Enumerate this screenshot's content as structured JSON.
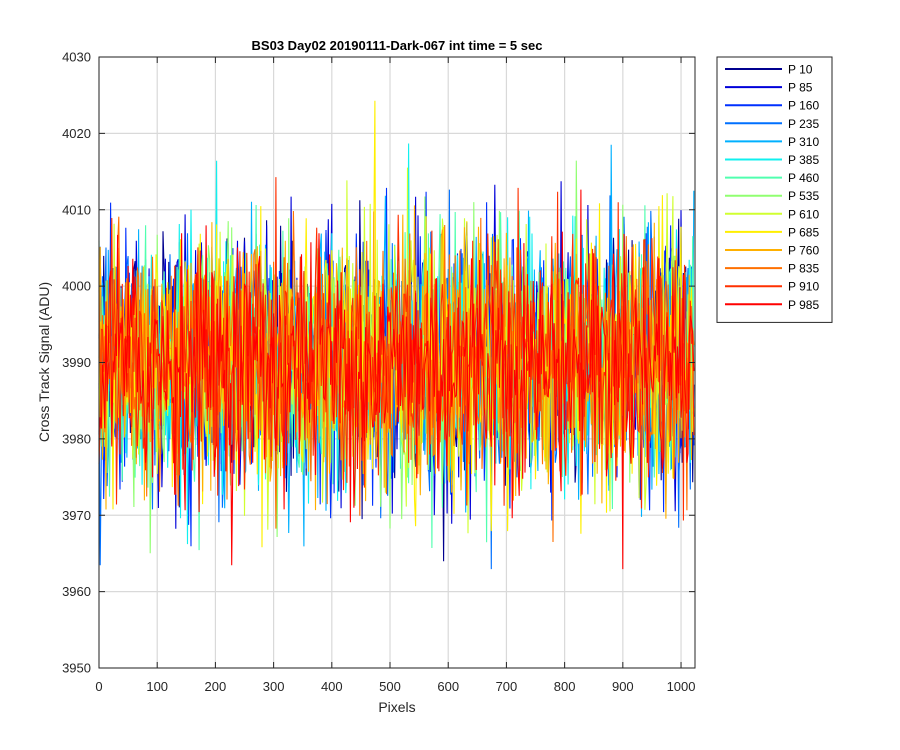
{
  "chart_data": {
    "type": "line",
    "title": "BS03 Day02 20190111-Dark-067 int time = 5 sec",
    "xlabel": "Pixels",
    "ylabel": "Cross Track Signal (ADU)",
    "xlim": [
      0,
      1024
    ],
    "ylim": [
      3950,
      4030
    ],
    "xticks": [
      0,
      100,
      200,
      300,
      400,
      500,
      600,
      700,
      800,
      900,
      1000
    ],
    "yticks": [
      3950,
      3960,
      3970,
      3980,
      3990,
      4000,
      4010,
      4020,
      4030
    ],
    "grid": true,
    "legend_position": "outside-right",
    "noise_profile": {
      "mean": 3990,
      "std": 8,
      "min_observed": 3956,
      "max_observed": 4025
    },
    "series": [
      {
        "name": "P 10",
        "color": "#00008f"
      },
      {
        "name": "P 85",
        "color": "#0000d9"
      },
      {
        "name": "P 160",
        "color": "#0030ff"
      },
      {
        "name": "P 235",
        "color": "#0070ff"
      },
      {
        "name": "P 310",
        "color": "#00b0ff"
      },
      {
        "name": "P 385",
        "color": "#10f0ef"
      },
      {
        "name": "P 460",
        "color": "#50ffaf"
      },
      {
        "name": "P 535",
        "color": "#90ff70"
      },
      {
        "name": "P 610",
        "color": "#d0ff30"
      },
      {
        "name": "P 685",
        "color": "#ffef00"
      },
      {
        "name": "P 760",
        "color": "#ffb000"
      },
      {
        "name": "P 835",
        "color": "#ff7000"
      },
      {
        "name": "P 910",
        "color": "#ff3000"
      },
      {
        "name": "P 985",
        "color": "#ff0000"
      }
    ]
  }
}
